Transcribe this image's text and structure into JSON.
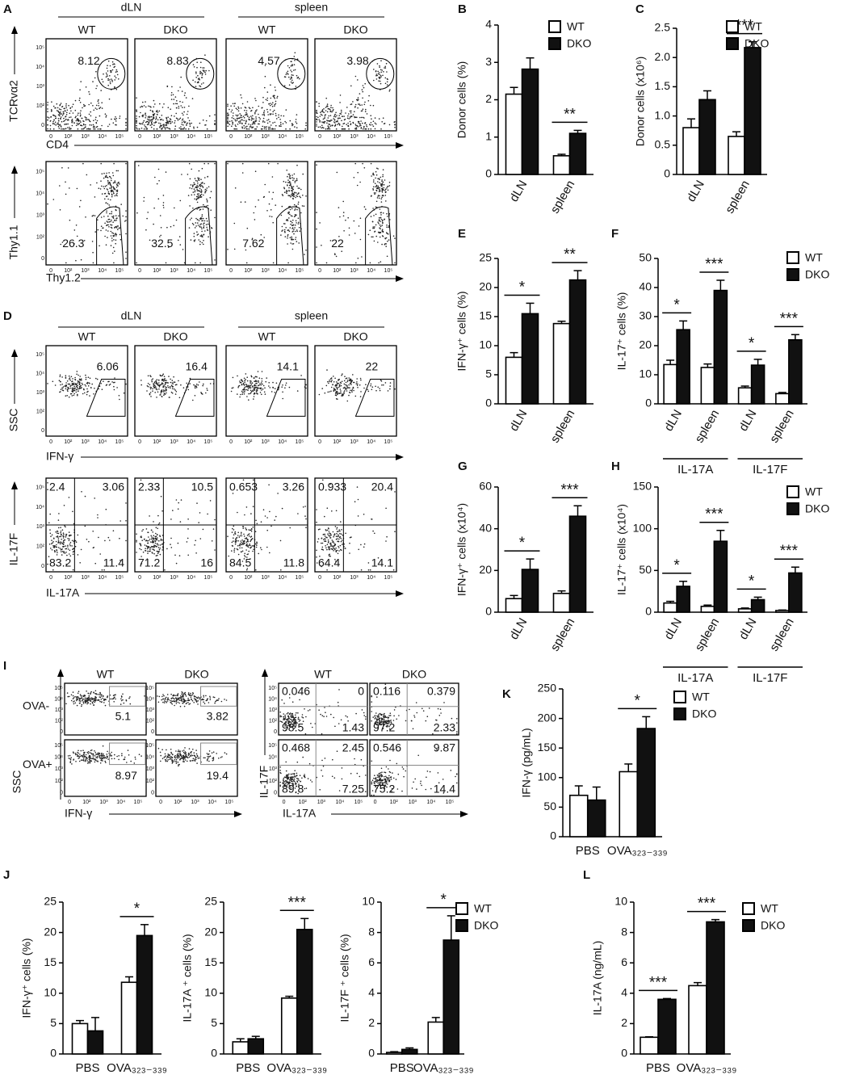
{
  "flow_axis_ticks": [
    "0",
    "10²",
    "10³",
    "10⁴",
    "10⁵"
  ],
  "flow_panels": [
    {
      "letter": "A",
      "groups": [
        "dLN",
        "spleen"
      ],
      "conditions": [
        "WT",
        "DKO",
        "WT",
        "DKO"
      ],
      "rows": [
        {
          "y_label": "TCRvα2",
          "x_label": "CD4",
          "gates": [
            "8.12",
            "8.83",
            "4.57",
            "3.98"
          ]
        },
        {
          "y_label": "Thy1.1",
          "x_label": "Thy1.2",
          "gates": [
            "26.3",
            "32.5",
            "7.62",
            "22"
          ]
        }
      ]
    },
    {
      "letter": "D",
      "groups": [
        "dLN",
        "spleen"
      ],
      "conditions": [
        "WT",
        "DKO",
        "WT",
        "DKO"
      ],
      "rows": [
        {
          "y_label": "SSC",
          "x_label": "IFN-γ",
          "gates": [
            "6.06",
            "16.4",
            "14.1",
            "22"
          ]
        },
        {
          "y_label": "IL-17F",
          "x_label": "IL-17A",
          "quadrants": [
            [
              "2.4",
              "3.06",
              "83.2",
              "11.4"
            ],
            [
              "2.33",
              "10.5",
              "71.2",
              "16"
            ],
            [
              "0.653",
              "3.26",
              "84.5",
              "11.8"
            ],
            [
              "0.933",
              "20.4",
              "64.4",
              "14.1"
            ]
          ]
        }
      ]
    },
    {
      "letter": "I",
      "conditions": [
        "WT",
        "DKO"
      ],
      "rows": [
        "OVA-",
        "OVA+"
      ],
      "left": {
        "y_label": "SSC",
        "x_label": "IFN-γ",
        "gates": [
          [
            "5.1",
            "3.82"
          ],
          [
            "8.97",
            "19.4"
          ]
        ]
      },
      "right": {
        "y_label": "IL-17F",
        "x_label": "IL-17A",
        "quadrants": [
          [
            [
              "0.046",
              "0",
              "98.5",
              "1.43"
            ],
            [
              "0.116",
              "0.379",
              "97.2",
              "2.33"
            ]
          ],
          [
            [
              "0.468",
              "2.45",
              "89.8",
              "7.25"
            ],
            [
              "0.546",
              "9.87",
              "75.2",
              "14.4"
            ]
          ]
        ]
      }
    }
  ],
  "chart_data": [
    {
      "type": "bar",
      "letter": "B",
      "ylabel": "Donor cells (%)",
      "categories": [
        "dLN",
        "spleen"
      ],
      "series": [
        {
          "name": "WT",
          "color": "#ffffff",
          "values": [
            2.15,
            0.5
          ],
          "errors": [
            0.18,
            0.04
          ]
        },
        {
          "name": "DKO",
          "color": "#111111",
          "values": [
            2.82,
            1.1
          ],
          "errors": [
            0.3,
            0.08
          ]
        }
      ],
      "ylim": [
        0,
        4
      ],
      "yticks": [
        0,
        1,
        2,
        3,
        4
      ],
      "significance": [
        null,
        "**"
      ],
      "legend": "right"
    },
    {
      "type": "bar",
      "letter": "C",
      "ylabel": "Donor cells (x10⁶)",
      "categories": [
        "dLN",
        "spleen"
      ],
      "series": [
        {
          "name": "WT",
          "color": "#ffffff",
          "values": [
            0.8,
            0.65
          ],
          "errors": [
            0.15,
            0.08
          ]
        },
        {
          "name": "DKO",
          "color": "#111111",
          "values": [
            1.28,
            2.17
          ],
          "errors": [
            0.15,
            0.1
          ]
        }
      ],
      "ylim": [
        0,
        2.5
      ],
      "yticks": [
        0,
        0.5,
        {
          "value": 1,
          "label": "1.0"
        },
        1.5,
        {
          "value": 2,
          "label": "2.0"
        },
        2.5
      ],
      "significance": [
        null,
        "***"
      ],
      "legend": "right"
    },
    {
      "type": "bar",
      "letter": "E",
      "ylabel": "IFN-γ⁺ cells (%)",
      "categories": [
        "dLN",
        "spleen"
      ],
      "series": [
        {
          "name": "WT",
          "color": "#ffffff",
          "values": [
            8,
            13.8
          ],
          "errors": [
            0.8,
            0.4
          ]
        },
        {
          "name": "DKO",
          "color": "#111111",
          "values": [
            15.5,
            21.3
          ],
          "errors": [
            1.8,
            1.6
          ]
        }
      ],
      "ylim": [
        0,
        25
      ],
      "yticks": [
        0,
        5,
        10,
        15,
        20,
        25
      ],
      "significance": [
        "*",
        "**"
      ]
    },
    {
      "type": "bar",
      "letter": "F",
      "ylabel": "IL-17⁺ cells (%)",
      "categories": [
        "dLN",
        "spleen",
        "dLN",
        "spleen"
      ],
      "groups": [
        "IL-17A",
        "IL-17F"
      ],
      "series": [
        {
          "name": "WT",
          "color": "#ffffff",
          "values": [
            13.5,
            12.5,
            5.5,
            3.5
          ],
          "errors": [
            1.5,
            1.2,
            0.6,
            0.4
          ]
        },
        {
          "name": "DKO",
          "color": "#111111",
          "values": [
            25.5,
            39,
            13.3,
            22
          ],
          "errors": [
            3,
            3.5,
            2,
            1.8
          ]
        }
      ],
      "ylim": [
        0,
        50
      ],
      "yticks": [
        0,
        10,
        20,
        30,
        40,
        50
      ],
      "significance": [
        "*",
        "***",
        "*",
        "***"
      ],
      "legend": "right"
    },
    {
      "type": "bar",
      "letter": "G",
      "ylabel": "IFN-γ⁺ cells (x10⁴)",
      "categories": [
        "dLN",
        "spleen"
      ],
      "series": [
        {
          "name": "WT",
          "color": "#ffffff",
          "values": [
            6.5,
            9
          ],
          "errors": [
            1.5,
            1.2
          ]
        },
        {
          "name": "DKO",
          "color": "#111111",
          "values": [
            20.5,
            46
          ],
          "errors": [
            5,
            5
          ]
        }
      ],
      "ylim": [
        0,
        60
      ],
      "yticks": [
        0,
        20,
        40,
        60
      ],
      "significance": [
        "*",
        "***"
      ]
    },
    {
      "type": "bar",
      "letter": "H",
      "ylabel": "IL-17⁺ cells (x10⁴)",
      "categories": [
        "dLN",
        "spleen",
        "dLN",
        "spleen"
      ],
      "groups": [
        "IL-17A",
        "IL-17F"
      ],
      "series": [
        {
          "name": "WT",
          "color": "#ffffff",
          "values": [
            11,
            7,
            4,
            2
          ],
          "errors": [
            2,
            1.5,
            1,
            0.6
          ]
        },
        {
          "name": "DKO",
          "color": "#111111",
          "values": [
            31,
            85,
            15,
            47
          ],
          "errors": [
            6,
            13,
            3,
            7
          ]
        }
      ],
      "ylim": [
        0,
        150
      ],
      "yticks": [
        0,
        50,
        100,
        150
      ],
      "significance": [
        "*",
        "***",
        "*",
        "***"
      ],
      "legend": "right"
    },
    {
      "type": "bar",
      "letter": "K",
      "ylabel": "IFN-γ (pg/mL)",
      "categories": [
        "PBS",
        "OVA₃₂₃₋₃₃₉"
      ],
      "series": [
        {
          "name": "WT",
          "color": "#ffffff",
          "values": [
            70,
            110
          ],
          "errors": [
            16,
            13
          ]
        },
        {
          "name": "DKO",
          "color": "#111111",
          "values": [
            62,
            183
          ],
          "errors": [
            22,
            20
          ]
        }
      ],
      "ylim": [
        0,
        250
      ],
      "yticks": [
        0,
        50,
        100,
        150,
        200,
        250
      ],
      "significance": [
        null,
        "*"
      ],
      "legend": "right"
    },
    {
      "type": "bar",
      "letter": "J",
      "ylabel": "IFN-γ⁺ cells (%)",
      "categories": [
        "PBS",
        "OVA₃₂₃₋₃₃₉"
      ],
      "series": [
        {
          "name": "WT",
          "color": "#ffffff",
          "values": [
            5,
            11.8
          ],
          "errors": [
            0.5,
            0.9
          ]
        },
        {
          "name": "DKO",
          "color": "#111111",
          "values": [
            3.8,
            19.5
          ],
          "errors": [
            2.2,
            1.8
          ]
        }
      ],
      "ylim": [
        0,
        25
      ],
      "yticks": [
        0,
        5,
        10,
        15,
        20,
        25
      ],
      "significance": [
        null,
        "*"
      ]
    },
    {
      "type": "bar",
      "ylabel": "IL-17A ⁺ cells (%)",
      "categories": [
        "PBS",
        "OVA₃₂₃₋₃₃₉"
      ],
      "series": [
        {
          "name": "WT",
          "color": "#ffffff",
          "values": [
            2,
            9.2
          ],
          "errors": [
            0.5,
            0.3
          ]
        },
        {
          "name": "DKO",
          "color": "#111111",
          "values": [
            2.5,
            20.5
          ],
          "errors": [
            0.4,
            1.8
          ]
        }
      ],
      "ylim": [
        0,
        25
      ],
      "yticks": [
        0,
        5,
        10,
        15,
        20,
        25
      ],
      "significance": [
        null,
        "***"
      ]
    },
    {
      "type": "bar",
      "ylabel": "IL-17F ⁺ cells (%)",
      "categories": [
        "PBS",
        "OVA₃₂₃₋₃₃₉"
      ],
      "series": [
        {
          "name": "WT",
          "color": "#ffffff",
          "values": [
            0.1,
            2.1
          ],
          "errors": [
            0.05,
            0.3
          ]
        },
        {
          "name": "DKO",
          "color": "#111111",
          "values": [
            0.3,
            7.5
          ],
          "errors": [
            0.1,
            1.6
          ]
        }
      ],
      "ylim": [
        0,
        10
      ],
      "yticks": [
        0,
        2,
        4,
        6,
        8,
        10
      ],
      "significance": [
        null,
        "*"
      ],
      "legend": "right"
    },
    {
      "type": "bar",
      "letter": "L",
      "ylabel": "IL-17A (ng/mL)",
      "categories": [
        "PBS",
        "OVA₃₂₃₋₃₃₉"
      ],
      "series": [
        {
          "name": "WT",
          "color": "#ffffff",
          "values": [
            1.1,
            4.5
          ],
          "errors": [
            0.03,
            0.2
          ]
        },
        {
          "name": "DKO",
          "color": "#111111",
          "values": [
            3.6,
            8.7
          ],
          "errors": [
            0.05,
            0.15
          ]
        }
      ],
      "ylim": [
        0,
        10
      ],
      "yticks": [
        0,
        2,
        4,
        6,
        8,
        10
      ],
      "significance": [
        "***",
        "***"
      ],
      "legend": "right"
    }
  ]
}
